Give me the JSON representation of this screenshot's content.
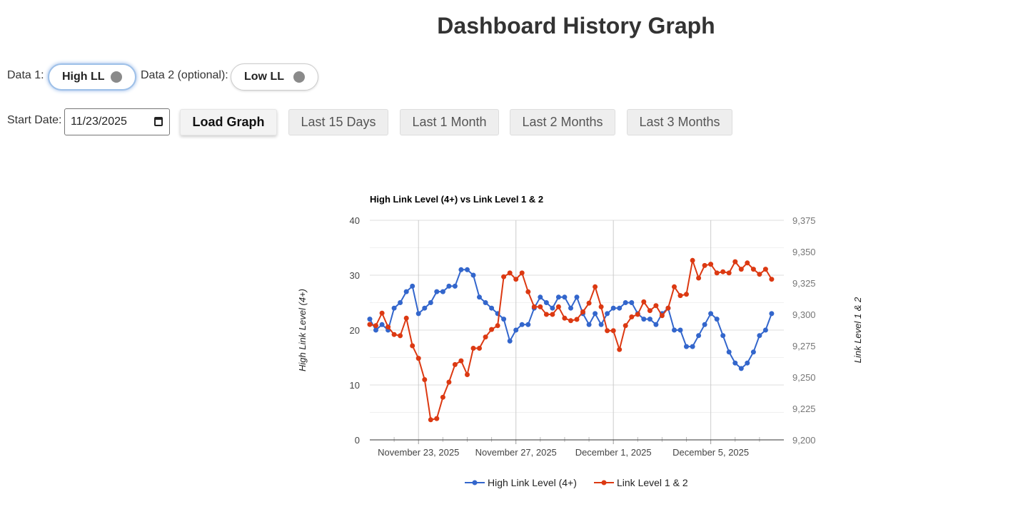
{
  "page": {
    "title": "Dashboard History Graph"
  },
  "controls": {
    "data1_label": "Data 1:",
    "data1_value": "High LL",
    "data2_label": "Data 2 (optional):",
    "data2_value": "Low LL",
    "start_date_label": "Start Date:",
    "start_date_value": "11/23/2025",
    "load_button": "Load Graph",
    "range_buttons": [
      "Last 15 Days",
      "Last 1 Month",
      "Last 2 Months",
      "Last 3 Months"
    ]
  },
  "colors": {
    "series1": "#3366cc",
    "series2": "#dc3912",
    "accent": "#9ec0e8"
  },
  "chart_data": {
    "type": "line",
    "title": "High Link Level (4+) vs Link Level 1 & 2",
    "x_tick_labels": [
      "November 23, 2025",
      "November 27, 2025",
      "December 1, 2025",
      "December 5, 2025"
    ],
    "x_tick_days": [
      2,
      6,
      10,
      14
    ],
    "ylabel": "High Link Level (4+)",
    "ylabel_right": "Link Level 1 & 2",
    "ylim": [
      0,
      40
    ],
    "ylim_right": [
      9200,
      9375
    ],
    "yticks": [
      "0",
      "10",
      "20",
      "30",
      "40"
    ],
    "yticks_right": [
      "9,200",
      "9,225",
      "9,250",
      "9,275",
      "9,300",
      "9,325",
      "9,350",
      "9,375"
    ],
    "x_range_days": [
      0,
      17
    ],
    "x_step_days": 0.25,
    "grid": true,
    "legend_position": "bottom",
    "series": [
      {
        "name": "High Link Level (4+)",
        "axis": "left",
        "values": [
          22,
          20,
          21,
          20,
          24,
          25,
          27,
          28,
          23,
          24,
          25,
          27,
          27,
          28,
          28,
          31,
          31,
          30,
          26,
          25,
          24,
          23,
          22,
          18,
          20,
          21,
          21,
          24,
          26,
          25,
          24,
          26,
          26,
          24,
          26,
          23,
          21,
          23,
          21,
          23,
          24,
          24,
          25,
          25,
          23,
          22,
          22,
          21,
          23,
          24,
          20,
          20,
          17,
          17,
          19,
          21,
          23,
          22,
          19,
          16,
          14,
          13,
          14,
          16,
          19,
          20,
          23
        ]
      },
      {
        "name": "Link Level 1 & 2",
        "axis": "right",
        "values": [
          9292,
          9291,
          9301,
          9290,
          9284,
          9283,
          9297,
          9275,
          9265,
          9248,
          9216,
          9217,
          9234,
          9246,
          9260,
          9263,
          9252,
          9273,
          9273,
          9282,
          9288,
          9291,
          9330,
          9333,
          9328,
          9333,
          9318,
          9306,
          9306,
          9300,
          9300,
          9306,
          9297,
          9295,
          9296,
          9302,
          9309,
          9322,
          9306,
          9287,
          9287,
          9272,
          9291,
          9298,
          9300,
          9310,
          9303,
          9307,
          9299,
          9305,
          9322,
          9315,
          9316,
          9343,
          9329,
          9339,
          9340,
          9333,
          9334,
          9333,
          9342,
          9336,
          9341,
          9336,
          9332,
          9336,
          9328
        ]
      }
    ]
  }
}
